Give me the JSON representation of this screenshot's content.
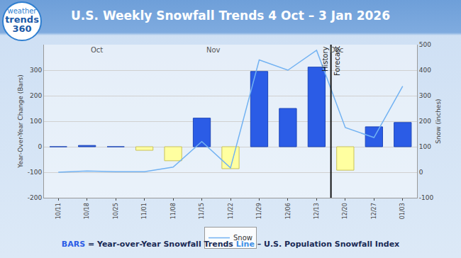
{
  "chart_data": {
    "type": "bar",
    "title": "U.S. Weekly Snowfall Trends 4 Oct – 3 Jan 2026",
    "categories": [
      "10/11",
      "10/18",
      "10/25",
      "11/01",
      "11/08",
      "11/15",
      "11/22",
      "11/29",
      "12/06",
      "12/13",
      "12/20",
      "12/27",
      "01/03"
    ],
    "y_label": "Year-Over-Year Change (Bars)",
    "y2_label": "Snow (inches)",
    "ylim": [
      -200,
      400
    ],
    "yticks": [
      -200,
      -100,
      0,
      100,
      200,
      300
    ],
    "y2lim": [
      -100,
      500
    ],
    "y2ticks": [
      -100,
      0,
      100,
      200,
      300,
      400,
      500
    ],
    "grid": true,
    "legend": "bottom",
    "series": [
      {
        "type": "bar",
        "colors": [
          "#2b5ce6",
          "#2b5ce6",
          "#2b5ce6",
          "#ffffa0",
          "#ffffa0",
          "#2b5ce6",
          "#ffffa0",
          "#2b5ce6",
          "#2b5ce6",
          "#2b5ce6",
          "#ffffa0",
          "#2b5ce6",
          "#2b5ce6"
        ],
        "values": [
          0,
          5,
          0,
          -14,
          -55,
          112,
          -86,
          295,
          150,
          312,
          -92,
          78,
          95
        ]
      },
      {
        "name": "Snow",
        "type": "line",
        "color": "#72b2f2",
        "axis": "y2",
        "values": [
          0,
          5,
          2,
          2,
          20,
          120,
          17,
          440,
          400,
          478,
          175,
          136,
          337
        ]
      }
    ],
    "annotations": {
      "months": [
        "Oct",
        "Nov",
        "Dec"
      ],
      "history": "History",
      "forecast": "Forecast"
    },
    "footer": [
      "BARS",
      "= Year-over-Year Snowfall Trends",
      "Line",
      "– U.S. Population Snowfall Index"
    ],
    "logo": [
      "weather",
      "trends",
      "360"
    ]
  }
}
